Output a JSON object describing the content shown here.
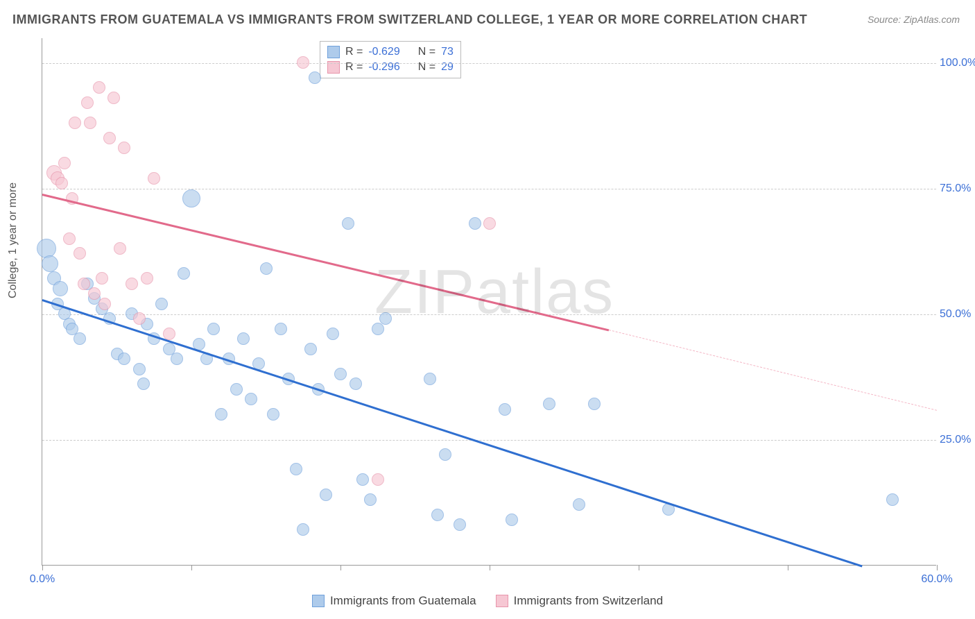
{
  "title": "IMMIGRANTS FROM GUATEMALA VS IMMIGRANTS FROM SWITZERLAND COLLEGE, 1 YEAR OR MORE CORRELATION CHART",
  "source": "Source: ZipAtlas.com",
  "watermark": "ZIPatlas",
  "ylabel": "College, 1 year or more",
  "chart": {
    "type": "scatter",
    "xlim": [
      0,
      60
    ],
    "ylim": [
      0,
      105
    ],
    "ytick_values": [
      25,
      50,
      75,
      100
    ],
    "ytick_labels": [
      "25.0%",
      "50.0%",
      "75.0%",
      "100.0%"
    ],
    "xtick_values": [
      0,
      10,
      20,
      30,
      40,
      50,
      60
    ],
    "xtick_labels_shown": {
      "0": "0.0%",
      "60": "60.0%"
    },
    "background_color": "#ffffff",
    "grid_color": "#cccccc",
    "axis_color": "#999999",
    "label_color": "#3b6fd6"
  },
  "series": [
    {
      "name": "Immigrants from Guatemala",
      "fill": "#aecbeb",
      "stroke": "#6fa0db",
      "marker_radius": 9,
      "fill_opacity": 0.65,
      "R": "-0.629",
      "N": "73",
      "trend": {
        "x1": 0,
        "y1": 53,
        "x2": 55,
        "y2": 0,
        "color": "#2f6fd0",
        "width": 2.5
      },
      "points": [
        {
          "x": 0.3,
          "y": 63,
          "r": 14
        },
        {
          "x": 0.5,
          "y": 60,
          "r": 12
        },
        {
          "x": 0.8,
          "y": 57,
          "r": 10
        },
        {
          "x": 1.2,
          "y": 55,
          "r": 11
        },
        {
          "x": 1.0,
          "y": 52,
          "r": 9
        },
        {
          "x": 1.5,
          "y": 50,
          "r": 9
        },
        {
          "x": 1.8,
          "y": 48,
          "r": 9
        },
        {
          "x": 2.0,
          "y": 47,
          "r": 9
        },
        {
          "x": 2.5,
          "y": 45,
          "r": 9
        },
        {
          "x": 3.0,
          "y": 56,
          "r": 9
        },
        {
          "x": 3.5,
          "y": 53,
          "r": 9
        },
        {
          "x": 4.0,
          "y": 51,
          "r": 9
        },
        {
          "x": 4.5,
          "y": 49,
          "r": 9
        },
        {
          "x": 5.0,
          "y": 42,
          "r": 9
        },
        {
          "x": 5.5,
          "y": 41,
          "r": 9
        },
        {
          "x": 6.0,
          "y": 50,
          "r": 9
        },
        {
          "x": 6.5,
          "y": 39,
          "r": 9
        },
        {
          "x": 6.8,
          "y": 36,
          "r": 9
        },
        {
          "x": 7.0,
          "y": 48,
          "r": 9
        },
        {
          "x": 7.5,
          "y": 45,
          "r": 9
        },
        {
          "x": 8.0,
          "y": 52,
          "r": 9
        },
        {
          "x": 8.5,
          "y": 43,
          "r": 9
        },
        {
          "x": 9.0,
          "y": 41,
          "r": 9
        },
        {
          "x": 9.5,
          "y": 58,
          "r": 9
        },
        {
          "x": 10.0,
          "y": 73,
          "r": 13
        },
        {
          "x": 10.5,
          "y": 44,
          "r": 9
        },
        {
          "x": 11.0,
          "y": 41,
          "r": 9
        },
        {
          "x": 11.5,
          "y": 47,
          "r": 9
        },
        {
          "x": 12.0,
          "y": 30,
          "r": 9
        },
        {
          "x": 12.5,
          "y": 41,
          "r": 9
        },
        {
          "x": 13.0,
          "y": 35,
          "r": 9
        },
        {
          "x": 13.5,
          "y": 45,
          "r": 9
        },
        {
          "x": 14.0,
          "y": 33,
          "r": 9
        },
        {
          "x": 14.5,
          "y": 40,
          "r": 9
        },
        {
          "x": 15.0,
          "y": 59,
          "r": 9
        },
        {
          "x": 15.5,
          "y": 30,
          "r": 9
        },
        {
          "x": 16.0,
          "y": 47,
          "r": 9
        },
        {
          "x": 16.5,
          "y": 37,
          "r": 9
        },
        {
          "x": 17.0,
          "y": 19,
          "r": 9
        },
        {
          "x": 17.5,
          "y": 7,
          "r": 9
        },
        {
          "x": 18.0,
          "y": 43,
          "r": 9
        },
        {
          "x": 18.3,
          "y": 97,
          "r": 9
        },
        {
          "x": 18.5,
          "y": 35,
          "r": 9
        },
        {
          "x": 19.0,
          "y": 14,
          "r": 9
        },
        {
          "x": 19.5,
          "y": 46,
          "r": 9
        },
        {
          "x": 20.0,
          "y": 38,
          "r": 9
        },
        {
          "x": 20.5,
          "y": 68,
          "r": 9
        },
        {
          "x": 21.0,
          "y": 36,
          "r": 9
        },
        {
          "x": 21.5,
          "y": 17,
          "r": 9
        },
        {
          "x": 22.0,
          "y": 13,
          "r": 9
        },
        {
          "x": 22.5,
          "y": 47,
          "r": 9
        },
        {
          "x": 23.0,
          "y": 49,
          "r": 9
        },
        {
          "x": 26.0,
          "y": 37,
          "r": 9
        },
        {
          "x": 26.5,
          "y": 10,
          "r": 9
        },
        {
          "x": 27.0,
          "y": 22,
          "r": 9
        },
        {
          "x": 28.0,
          "y": 8,
          "r": 9
        },
        {
          "x": 29.0,
          "y": 68,
          "r": 9
        },
        {
          "x": 31.0,
          "y": 31,
          "r": 9
        },
        {
          "x": 31.5,
          "y": 9,
          "r": 9
        },
        {
          "x": 34.0,
          "y": 32,
          "r": 9
        },
        {
          "x": 36.0,
          "y": 12,
          "r": 9
        },
        {
          "x": 37.0,
          "y": 32,
          "r": 9
        },
        {
          "x": 42.0,
          "y": 11,
          "r": 9
        },
        {
          "x": 57.0,
          "y": 13,
          "r": 9
        }
      ]
    },
    {
      "name": "Immigrants from Switzerland",
      "fill": "#f6c7d3",
      "stroke": "#e895ab",
      "marker_radius": 9,
      "fill_opacity": 0.65,
      "R": "-0.296",
      "N": "29",
      "trend_solid": {
        "x1": 0,
        "y1": 74,
        "x2": 38,
        "y2": 47,
        "color": "#e26a8b",
        "width": 2.5
      },
      "trend_dash": {
        "x1": 38,
        "y1": 47,
        "x2": 60,
        "y2": 31,
        "color": "#f4b6c5",
        "width": 1.5
      },
      "points": [
        {
          "x": 0.8,
          "y": 78,
          "r": 11
        },
        {
          "x": 1.0,
          "y": 77,
          "r": 10
        },
        {
          "x": 1.3,
          "y": 76,
          "r": 9
        },
        {
          "x": 1.5,
          "y": 80,
          "r": 9
        },
        {
          "x": 1.8,
          "y": 65,
          "r": 9
        },
        {
          "x": 2.0,
          "y": 73,
          "r": 9
        },
        {
          "x": 2.2,
          "y": 88,
          "r": 9
        },
        {
          "x": 2.5,
          "y": 62,
          "r": 9
        },
        {
          "x": 2.8,
          "y": 56,
          "r": 9
        },
        {
          "x": 3.0,
          "y": 92,
          "r": 9
        },
        {
          "x": 3.2,
          "y": 88,
          "r": 9
        },
        {
          "x": 3.5,
          "y": 54,
          "r": 9
        },
        {
          "x": 3.8,
          "y": 95,
          "r": 9
        },
        {
          "x": 4.0,
          "y": 57,
          "r": 9
        },
        {
          "x": 4.2,
          "y": 52,
          "r": 9
        },
        {
          "x": 4.5,
          "y": 85,
          "r": 9
        },
        {
          "x": 4.8,
          "y": 93,
          "r": 9
        },
        {
          "x": 5.2,
          "y": 63,
          "r": 9
        },
        {
          "x": 5.5,
          "y": 83,
          "r": 9
        },
        {
          "x": 6.0,
          "y": 56,
          "r": 9
        },
        {
          "x": 6.5,
          "y": 49,
          "r": 9
        },
        {
          "x": 7.0,
          "y": 57,
          "r": 9
        },
        {
          "x": 7.5,
          "y": 77,
          "r": 9
        },
        {
          "x": 8.5,
          "y": 46,
          "r": 9
        },
        {
          "x": 17.5,
          "y": 100,
          "r": 9
        },
        {
          "x": 22.5,
          "y": 17,
          "r": 9
        },
        {
          "x": 30.0,
          "y": 68,
          "r": 9
        }
      ]
    }
  ],
  "stats_box": {
    "rows": [
      {
        "swatch_fill": "#aecbeb",
        "swatch_stroke": "#6fa0db",
        "r_label": "R =",
        "r_val": "-0.629",
        "n_label": "N =",
        "n_val": "73"
      },
      {
        "swatch_fill": "#f6c7d3",
        "swatch_stroke": "#e895ab",
        "r_label": "R =",
        "r_val": "-0.296",
        "n_label": "N =",
        "n_val": "29"
      }
    ]
  },
  "bottom_legend": [
    {
      "swatch_fill": "#aecbeb",
      "swatch_stroke": "#6fa0db",
      "label": "Immigrants from Guatemala"
    },
    {
      "swatch_fill": "#f6c7d3",
      "swatch_stroke": "#e895ab",
      "label": "Immigrants from Switzerland"
    }
  ]
}
